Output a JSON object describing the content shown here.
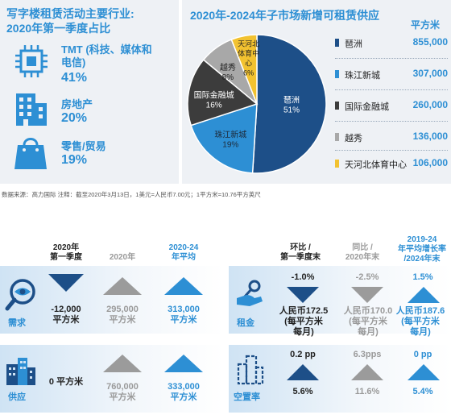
{
  "left_panel": {
    "title_line1": "写字楼租赁活动主要行业:",
    "title_line2": "2020年第一季度占比",
    "sectors": [
      {
        "icon": "chip-icon",
        "label_line1": "TMT (科技、媒体和",
        "label_line2": "电信)",
        "percent": "41%"
      },
      {
        "icon": "building-icon",
        "label_line1": "房地产",
        "label_line2": "",
        "percent": "20%"
      },
      {
        "icon": "shopping-bag-icon",
        "label_line1": "零售/贸易",
        "label_line2": "",
        "percent": "19%"
      }
    ]
  },
  "right_panel": {
    "title": "2020年-2024年子市场新增可租赁供应",
    "unit": "平方米"
  },
  "chart_data": {
    "type": "pie",
    "title": "2020年-2024年子市场新增可租赁供应",
    "unit": "平方米",
    "slices": [
      {
        "name": "琶洲",
        "percent": 51,
        "value": 855000,
        "value_text": "855,000",
        "color": "#1d4f88",
        "label_color": "#ffffff"
      },
      {
        "name": "珠江新城",
        "percent": 19,
        "value": 307000,
        "value_text": "307,000",
        "color": "#2d8fd4",
        "label_color": "#1d2a3a"
      },
      {
        "name": "国际金融城",
        "percent": 16,
        "value": 260000,
        "value_text": "260,000",
        "color": "#3c3c3c",
        "label_color": "#ffffff"
      },
      {
        "name": "越秀",
        "percent": 8,
        "value": 136000,
        "value_text": "136,000",
        "color": "#a8a8a8",
        "label_color": "#222222"
      },
      {
        "name": "天河北体育中心",
        "percent": 6,
        "value": 106000,
        "value_text": "106,000",
        "color": "#f2c230",
        "label_color": "#222222"
      }
    ]
  },
  "source_note": "数据来源：高力国际  注释：截至2020年3月13日，1美元=人民币7.00元；1平方米=10.76平方英尺",
  "demand_supply": {
    "headers": [
      {
        "line1": "2020年",
        "line2": "第一季度"
      },
      {
        "line1": "2020年",
        "line2": ""
      },
      {
        "line1": "2020-24",
        "line2": "年平均"
      }
    ],
    "rows": [
      {
        "label": "需求",
        "icon": "magnifier-eye-icon",
        "values": [
          {
            "line1": "-12,000",
            "line2": "平方米"
          },
          {
            "line1": "295,000",
            "line2": "平方米"
          },
          {
            "line1": "313,000",
            "line2": "平方米"
          }
        ]
      },
      {
        "label": "供应",
        "icon": "buildings-icon",
        "values": [
          {
            "line1": "0 平方米",
            "line2": ""
          },
          {
            "line1": "760,000",
            "line2": "平方米"
          },
          {
            "line1": "333,000",
            "line2": "平方米"
          }
        ]
      }
    ]
  },
  "rent_vacancy": {
    "headers": [
      {
        "line1": "环比 /",
        "line2": "第一季度末"
      },
      {
        "line1": "同比 /",
        "line2": "2020年末"
      },
      {
        "line1": "2019-24",
        "line2": "年平均增长率",
        "line3": "/2024年末"
      }
    ],
    "rows": [
      {
        "label": "租金",
        "icon": "hand-key-icon",
        "changes": [
          "-1.0%",
          "-2.5%",
          "1.5%"
        ],
        "values": [
          {
            "line1": "人民币172.5",
            "line2": "(每平方米",
            "line3": "每月)"
          },
          {
            "line1": "人民币170.0",
            "line2": "(每平方米",
            "line3": "每月)"
          },
          {
            "line1": "人民币187.6",
            "line2": "(每平方米",
            "line3": "每月)"
          }
        ]
      },
      {
        "label": "空置率",
        "icon": "vacancy-icon",
        "changes": [
          "0.2 pp",
          "6.3pps",
          "0 pp"
        ],
        "values": [
          {
            "line1": "5.6%"
          },
          {
            "line1": "11.6%"
          },
          {
            "line1": "5.4%"
          }
        ]
      }
    ]
  }
}
